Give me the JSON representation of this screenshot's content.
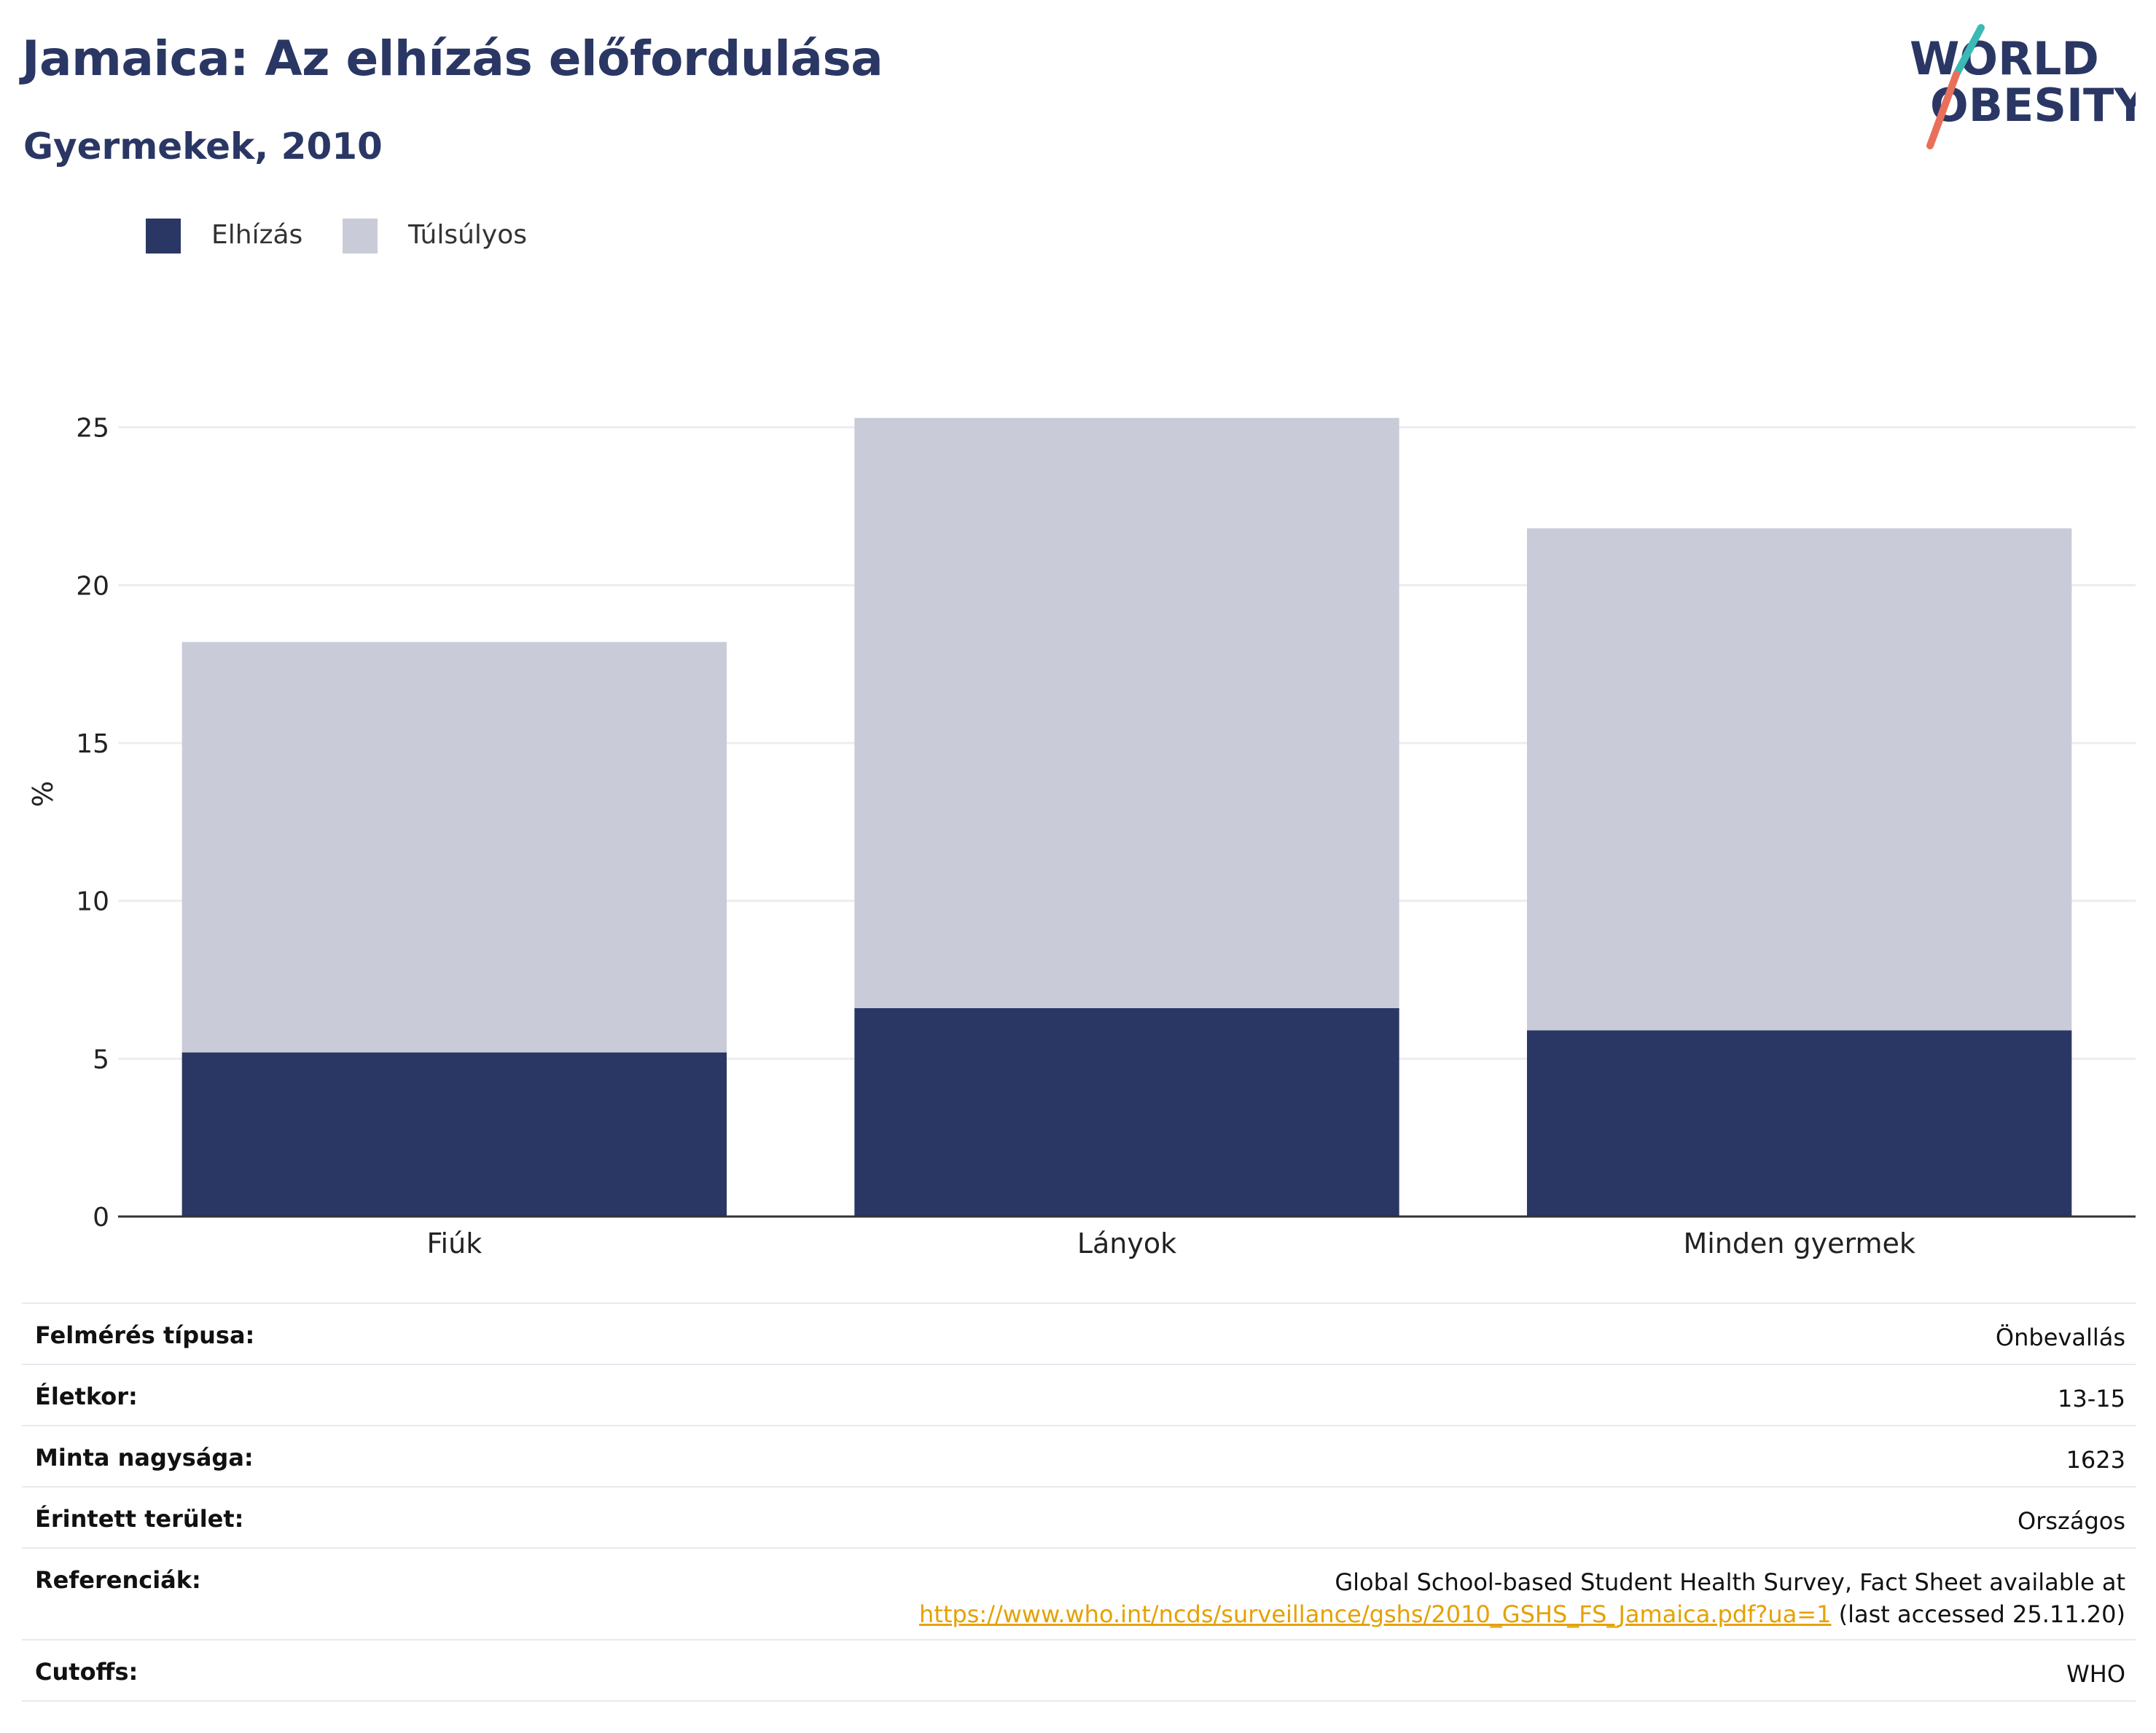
{
  "title": "Jamaica: Az elhízás előfordulása",
  "subtitle": "Gyermekek, 2010",
  "logo": {
    "line1": "WORLD",
    "line2": "OBESITY"
  },
  "colors": {
    "obesity": "#2a3764",
    "overweight": "#c9ccd8",
    "accent_teal": "#3ab9b5",
    "accent_coral": "#e8705b",
    "link": "#e5a100"
  },
  "legend": [
    {
      "label": "Elhízás",
      "color": "#2a3764"
    },
    {
      "label": "Túlsúlyos",
      "color": "#c9ccd8"
    }
  ],
  "chart_data": {
    "type": "bar",
    "stacked": true,
    "categories": [
      "Fiúk",
      "Lányok",
      "Minden gyermek"
    ],
    "series": [
      {
        "name": "Elhízás",
        "values": [
          5.2,
          6.6,
          5.9
        ]
      },
      {
        "name": "Túlsúlyos",
        "values": [
          13.0,
          18.7,
          15.9
        ]
      }
    ],
    "totals": [
      18.2,
      25.3,
      21.8
    ],
    "ylabel": "%",
    "ylim": [
      0,
      27
    ],
    "yticks": [
      0,
      5,
      10,
      15,
      20,
      25
    ],
    "grid": true,
    "legend_position": "top-left"
  },
  "info": {
    "rows": [
      {
        "label": "Felmérés típusa:",
        "value": "Önbevallás"
      },
      {
        "label": "Életkor:",
        "value": "13-15"
      },
      {
        "label": "Minta nagysága:",
        "value": "1623"
      },
      {
        "label": "Érintett terület:",
        "value": "Országos"
      },
      {
        "label": "Referenciák:",
        "value": "Global School-based Student Health Survey, Fact Sheet available at",
        "link": "https://www.who.int/ncds/surveillance/gshs/2010_GSHS_FS_Jamaica.pdf?ua=1",
        "suffix": " (last accessed 25.11.20)"
      },
      {
        "label": "Cutoffs:",
        "value": "WHO"
      }
    ]
  }
}
